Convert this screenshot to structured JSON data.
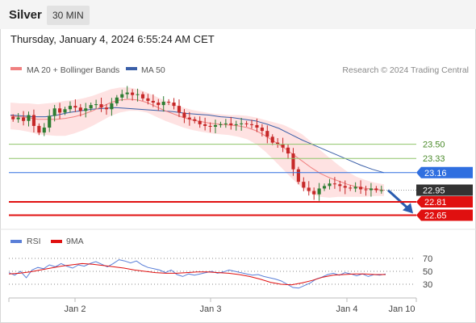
{
  "header": {
    "symbol": "Silver",
    "timeframe": "30 MIN"
  },
  "datetime": "Thursday, January 4, 2024 6:55:24 AM CET",
  "legend": {
    "ma20": "MA 20 + Bollinger Bands",
    "ma50": "MA 50"
  },
  "copyright": "Research © 2024 Trading Central",
  "colors": {
    "ma20": "#f08080",
    "ma50": "#3a5fa8",
    "bollinger_fill": "#fdd8d8",
    "resistance": "#8fc46a",
    "pivot": "#2f6fe0",
    "support": "#e01010",
    "current": "#333333",
    "arrow": "#2a5cb0",
    "candle_up": "#2e7d32",
    "candle_down": "#c62828",
    "rsi": "#5a7fd8",
    "rsi_ma": "#e01010"
  },
  "chart_data": [
    {
      "type": "candlestick",
      "title": "Silver",
      "x_ticks": [
        "Jan 2",
        "Jan 3",
        "Jan 4",
        "Jan 10"
      ],
      "ylim": [
        22.5,
        24.3
      ],
      "series": [
        {
          "name": "Price",
          "values": [
            23.8,
            23.82,
            23.78,
            23.85,
            23.72,
            23.64,
            23.7,
            23.84,
            23.93,
            23.88,
            23.92,
            23.96,
            23.94,
            23.9,
            23.93,
            23.97,
            23.98,
            23.94,
            23.92,
            23.99,
            24.06,
            24.1,
            24.12,
            24.09,
            24.1,
            24.05,
            24.02,
            24.0,
            23.97,
            24.01,
            24.0,
            23.96,
            23.88,
            23.82,
            23.8,
            23.78,
            23.74,
            23.72,
            23.71,
            23.73,
            23.74,
            23.75,
            23.73,
            23.74,
            23.75,
            23.74,
            23.73,
            23.7,
            23.66,
            23.59,
            23.52,
            23.5,
            23.46,
            23.39,
            23.2,
            23.05,
            22.98,
            22.94,
            22.9,
            22.97,
            23.0,
            23.03,
            23.02,
            23.0,
            22.98,
            22.97,
            22.99,
            22.96,
            22.95,
            22.97,
            22.95,
            22.95
          ]
        },
        {
          "name": "MA 20",
          "values": [
            23.84,
            23.83,
            23.82,
            23.8,
            23.8,
            23.8,
            23.81,
            23.83,
            23.86,
            23.9,
            23.95,
            24.0,
            24.03,
            24.04,
            24.03,
            24.0,
            23.95,
            23.9,
            23.86,
            23.82,
            23.79,
            23.77,
            23.75,
            23.74,
            23.73,
            23.72,
            23.7,
            23.66,
            23.6,
            23.53,
            23.46,
            23.38,
            23.3,
            23.22,
            23.15,
            23.1,
            23.06,
            23.02,
            22.99,
            22.97,
            22.96,
            22.95
          ]
        },
        {
          "name": "MA 50",
          "values": [
            23.85,
            23.84,
            23.83,
            23.83,
            23.85,
            23.88,
            23.9,
            23.92,
            23.93,
            23.94,
            23.93,
            23.92,
            23.91,
            23.9,
            23.89,
            23.87,
            23.86,
            23.85,
            23.83,
            23.82,
            23.8,
            23.78,
            23.74,
            23.69,
            23.62,
            23.55,
            23.49,
            23.43,
            23.37,
            23.31,
            23.25,
            23.2,
            23.16
          ]
        }
      ],
      "levels": [
        {
          "value": 23.5,
          "label": "23.50",
          "kind": "resistance"
        },
        {
          "value": 23.33,
          "label": "23.33",
          "kind": "resistance"
        },
        {
          "value": 23.16,
          "label": "23.16",
          "kind": "pivot"
        },
        {
          "value": 22.95,
          "label": "22.95",
          "kind": "current"
        },
        {
          "value": 22.81,
          "label": "22.81",
          "kind": "support"
        },
        {
          "value": 22.65,
          "label": "22.65",
          "kind": "support"
        }
      ],
      "forecast_arrow": {
        "from": 22.95,
        "to": 22.7
      }
    },
    {
      "type": "line",
      "title": "RSI",
      "legend": [
        "RSI",
        "9MA"
      ],
      "ylim": [
        10,
        80
      ],
      "y_ticks": [
        70,
        50,
        30
      ],
      "series": [
        {
          "name": "RSI",
          "values": [
            48,
            44,
            50,
            40,
            52,
            56,
            54,
            60,
            57,
            62,
            58,
            55,
            60,
            58,
            62,
            65,
            61,
            57,
            62,
            68,
            66,
            63,
            66,
            60,
            56,
            54,
            52,
            48,
            52,
            45,
            42,
            46,
            44,
            46,
            48,
            50,
            47,
            49,
            52,
            50,
            48,
            46,
            44,
            45,
            42,
            40,
            38,
            35,
            30,
            25,
            24,
            28,
            32,
            38,
            41,
            45,
            47,
            44,
            48,
            46,
            43,
            46,
            42,
            45,
            44,
            46
          ]
        },
        {
          "name": "9MA",
          "values": [
            46,
            47,
            49,
            52,
            55,
            58,
            60,
            62,
            61,
            59,
            57,
            55,
            52,
            50,
            48,
            47,
            47,
            48,
            49,
            49,
            48,
            47,
            45,
            42,
            38,
            33,
            30,
            29,
            32,
            36,
            41,
            44,
            45,
            46,
            46,
            45,
            45
          ]
        }
      ]
    }
  ]
}
